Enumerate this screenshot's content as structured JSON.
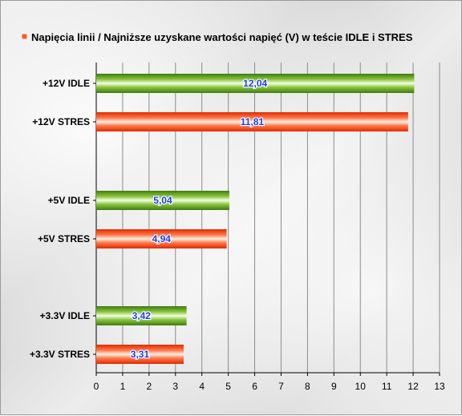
{
  "chart_data": {
    "type": "bar",
    "orientation": "horizontal",
    "title": "",
    "legend": {
      "label": "Napięcia linii / Najniższe uzyskane wartości napięć (V) w teście IDLE i STRES",
      "placement": "top",
      "swatch_color": "#ff5a2a"
    },
    "categories": [
      "+12V IDLE",
      "+12V STRES",
      "+5V IDLE",
      "+5V STRES",
      "+3.3V IDLE",
      "+3.3V STRES"
    ],
    "values": [
      12.04,
      11.81,
      5.04,
      4.94,
      3.42,
      3.31
    ],
    "data_labels": [
      "12,04",
      "11,81",
      "5,04",
      "4,94",
      "3,42",
      "3,31"
    ],
    "bar_colors": [
      "#5a9a1e",
      "#ff4a1a",
      "#5a9a1e",
      "#ff4a1a",
      "#5a9a1e",
      "#ff4a1a"
    ],
    "groups": [
      [
        0,
        1
      ],
      [
        2,
        3
      ],
      [
        4,
        5
      ]
    ],
    "xlim": [
      0,
      13
    ],
    "xticks": [
      "0",
      "1",
      "2",
      "3",
      "4",
      "5",
      "6",
      "7",
      "8",
      "9",
      "10",
      "11",
      "12",
      "13"
    ],
    "grid": true,
    "xlabel": "",
    "ylabel": ""
  }
}
